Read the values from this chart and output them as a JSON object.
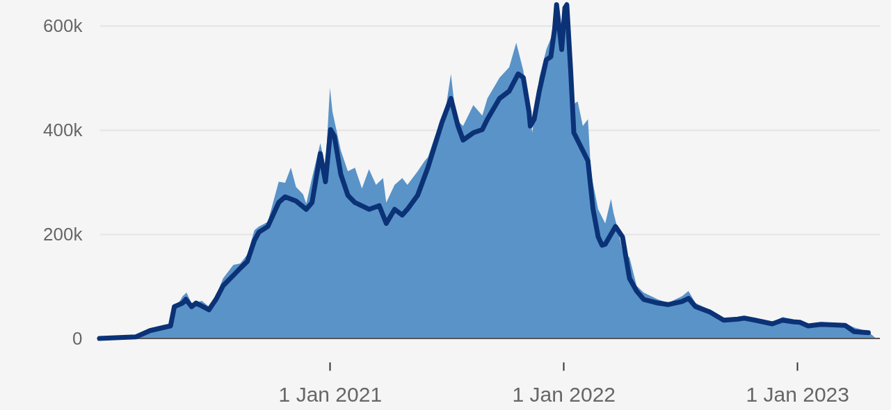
{
  "chart_data": {
    "type": "area",
    "xlim": [
      "2020-01-07",
      "2023-05-10"
    ],
    "ylim": [
      0,
      650000
    ],
    "xticks": [
      {
        "value": "2021-01-01",
        "label": "1 Jan 2021"
      },
      {
        "value": "2022-01-01",
        "label": "1 Jan 2022"
      },
      {
        "value": "2023-01-01",
        "label": "1 Jan 2023"
      }
    ],
    "yticks": [
      {
        "value": 0,
        "label": "0"
      },
      {
        "value": 200000,
        "label": "200k"
      },
      {
        "value": 400000,
        "label": "400k"
      },
      {
        "value": 600000,
        "label": "600k"
      }
    ],
    "grid": "y",
    "line_style": "solid",
    "marker": "none",
    "series": [
      {
        "color": "#5a93c8",
        "x": [
          "2020-01-07",
          "2020-03-04",
          "2020-03-26",
          "2020-04-27",
          "2020-05-03",
          "2020-05-16",
          "2020-05-22",
          "2020-05-30",
          "2020-06-15",
          "2020-06-26",
          "2020-07-07",
          "2020-07-18",
          "2020-08-03",
          "2020-08-14",
          "2020-08-25",
          "2020-09-05",
          "2020-09-12",
          "2020-09-26",
          "2020-10-13",
          "2020-10-23",
          "2020-11-01",
          "2020-11-09",
          "2020-11-20",
          "2020-11-25",
          "2020-12-04",
          "2020-12-17",
          "2020-12-25",
          "2021-01-01",
          "2021-01-05",
          "2021-01-18",
          "2021-01-29",
          "2021-02-09",
          "2021-02-20",
          "2021-03-03",
          "2021-03-14",
          "2021-03-25",
          "2021-03-30",
          "2021-04-12",
          "2021-04-24",
          "2021-05-02",
          "2021-05-18",
          "2021-05-29",
          "2021-06-03",
          "2021-06-14",
          "2021-06-30",
          "2021-07-09",
          "2021-07-17",
          "2021-07-28",
          "2021-08-13",
          "2021-08-27",
          "2021-09-04",
          "2021-09-23",
          "2021-10-08",
          "2021-10-19",
          "2021-10-30",
          "2021-11-08",
          "2021-11-13",
          "2021-11-24",
          "2021-12-05",
          "2021-12-18",
          "2021-12-21",
          "2021-12-29",
          "2022-01-03",
          "2022-01-10",
          "2022-01-14",
          "2022-01-23",
          "2022-01-31",
          "2022-02-08",
          "2022-02-13",
          "2022-02-24",
          "2022-03-07",
          "2022-03-16",
          "2022-03-20",
          "2022-03-27",
          "2022-04-03",
          "2022-04-14",
          "2022-04-25",
          "2022-05-06",
          "2022-05-28",
          "2022-06-13",
          "2022-07-05",
          "2022-07-15",
          "2022-07-26",
          "2022-08-17",
          "2022-09-08",
          "2022-10-10",
          "2022-10-27",
          "2022-11-23",
          "2022-12-09",
          "2022-12-25",
          "2023-01-16",
          "2023-02-07",
          "2023-03-17",
          "2023-03-31",
          "2023-04-22",
          "2023-05-03"
        ],
        "values": [
          0,
          3000,
          16000,
          27000,
          55000,
          81000,
          88000,
          67000,
          72000,
          61000,
          81000,
          115000,
          141000,
          144000,
          161000,
          208000,
          215000,
          224000,
          301000,
          299000,
          328000,
          291000,
          277000,
          259000,
          308000,
          375000,
          328000,
          481000,
          435000,
          361000,
          321000,
          328000,
          288000,
          325000,
          295000,
          308000,
          261000,
          295000,
          308000,
          295000,
          321000,
          341000,
          348000,
          388000,
          435000,
          508000,
          421000,
          408000,
          448000,
          428000,
          461000,
          501000,
          521000,
          568000,
          515000,
          448000,
          395000,
          501000,
          555000,
          595000,
          641000,
          568000,
          641000,
          608000,
          448000,
          455000,
          408000,
          421000,
          315000,
          248000,
          221000,
          268000,
          241000,
          208000,
          168000,
          155000,
          101000,
          88000,
          75000,
          68000,
          81000,
          91000,
          68000,
          55000,
          37000,
          43000,
          37000,
          31000,
          41000,
          37000,
          27000,
          31000,
          29000,
          21000,
          13000,
          1000
        ]
      },
      {
        "type": "line",
        "color": "#0b3276",
        "x": [
          "2020-01-07",
          "2020-03-04",
          "2020-03-26",
          "2020-04-16",
          "2020-04-27",
          "2020-05-03",
          "2020-05-16",
          "2020-05-21",
          "2020-05-30",
          "2020-06-06",
          "2020-06-17",
          "2020-06-26",
          "2020-07-07",
          "2020-07-18",
          "2020-08-03",
          "2020-08-14",
          "2020-08-25",
          "2020-09-05",
          "2020-09-12",
          "2020-09-26",
          "2020-10-13",
          "2020-10-23",
          "2020-11-09",
          "2020-11-25",
          "2020-12-04",
          "2020-12-17",
          "2020-12-25",
          "2021-01-02",
          "2021-01-08",
          "2021-01-18",
          "2021-01-29",
          "2021-02-09",
          "2021-03-03",
          "2021-03-19",
          "2021-03-30",
          "2021-04-12",
          "2021-04-24",
          "2021-05-02",
          "2021-05-18",
          "2021-06-03",
          "2021-06-25",
          "2021-07-09",
          "2021-07-20",
          "2021-07-28",
          "2021-08-13",
          "2021-08-27",
          "2021-09-04",
          "2021-09-23",
          "2021-10-08",
          "2021-10-22",
          "2021-10-30",
          "2021-11-08",
          "2021-11-10",
          "2021-11-16",
          "2021-11-24",
          "2021-12-05",
          "2021-12-12",
          "2021-12-18",
          "2021-12-21",
          "2021-12-29",
          "2022-01-03",
          "2022-01-06",
          "2022-01-12",
          "2022-01-17",
          "2022-01-28",
          "2022-02-08",
          "2022-02-16",
          "2022-02-24",
          "2022-03-02",
          "2022-03-07",
          "2022-03-23",
          "2022-04-03",
          "2022-04-14",
          "2022-04-25",
          "2022-05-06",
          "2022-05-28",
          "2022-06-13",
          "2022-07-05",
          "2022-07-15",
          "2022-07-26",
          "2022-08-17",
          "2022-09-08",
          "2022-09-30",
          "2022-10-10",
          "2022-10-27",
          "2022-11-23",
          "2022-12-09",
          "2022-12-25",
          "2023-01-05",
          "2023-01-18",
          "2023-02-07",
          "2023-03-17",
          "2023-03-31",
          "2023-04-22"
        ],
        "values": [
          0,
          3000,
          15000,
          21000,
          24000,
          61000,
          68000,
          75000,
          61000,
          68000,
          61000,
          55000,
          75000,
          101000,
          121000,
          135000,
          148000,
          188000,
          204000,
          215000,
          261000,
          272000,
          264000,
          248000,
          261000,
          355000,
          301000,
          401000,
          388000,
          315000,
          275000,
          261000,
          248000,
          255000,
          221000,
          248000,
          237000,
          248000,
          275000,
          328000,
          415000,
          461000,
          408000,
          381000,
          395000,
          401000,
          421000,
          461000,
          475000,
          508000,
          501000,
          435000,
          408000,
          421000,
          475000,
          535000,
          541000,
          595000,
          641000,
          555000,
          635000,
          641000,
          515000,
          395000,
          368000,
          341000,
          248000,
          195000,
          179000,
          181000,
          215000,
          195000,
          115000,
          91000,
          75000,
          68000,
          65000,
          71000,
          77000,
          61000,
          51000,
          35000,
          37000,
          39000,
          35000,
          28000,
          35000,
          32000,
          31000,
          24000,
          27000,
          25000,
          13000,
          11000
        ]
      }
    ]
  }
}
